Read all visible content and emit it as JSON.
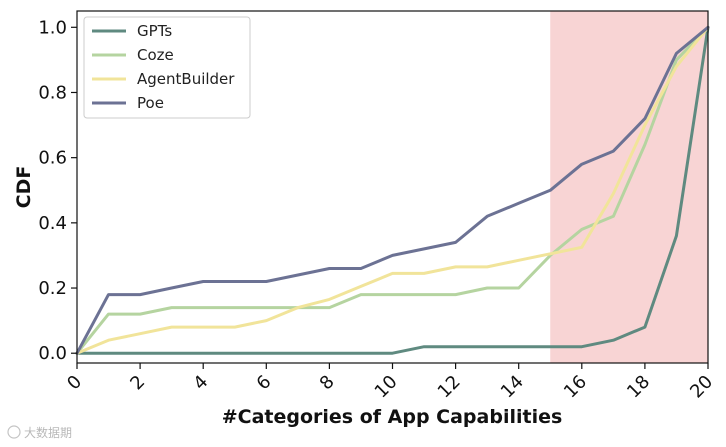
{
  "chart_data": {
    "type": "line",
    "title": "",
    "xlabel": "#Categories of App Capabilities",
    "ylabel": "CDF",
    "xlim": [
      0,
      20
    ],
    "ylim": [
      -0.03,
      1.05
    ],
    "xticks": [
      0,
      2,
      4,
      6,
      8,
      10,
      12,
      14,
      16,
      18,
      20
    ],
    "yticks": [
      0.0,
      0.2,
      0.4,
      0.6,
      0.8,
      1.0
    ],
    "ytick_labels": [
      "0.0",
      "0.2",
      "0.4",
      "0.6",
      "0.8",
      "1.0"
    ],
    "grid": false,
    "legend_position": "top-left",
    "highlight_region": {
      "x_start": 15,
      "x_end": 20,
      "color": "#f5c6c6"
    },
    "x": [
      0,
      1,
      2,
      3,
      4,
      5,
      6,
      7,
      8,
      9,
      10,
      11,
      12,
      13,
      14,
      15,
      16,
      17,
      18,
      19,
      20
    ],
    "series": [
      {
        "name": "GPTs",
        "color": "#5f8a80",
        "values": [
          0,
          0,
          0,
          0,
          0,
          0,
          0,
          0,
          0,
          0,
          0,
          0.02,
          0.02,
          0.02,
          0.02,
          0.02,
          0.02,
          0.04,
          0.08,
          0.36,
          1.0
        ]
      },
      {
        "name": "Coze",
        "color": "#b5d4a0",
        "values": [
          0,
          0.12,
          0.12,
          0.14,
          0.14,
          0.14,
          0.14,
          0.14,
          0.14,
          0.18,
          0.18,
          0.18,
          0.18,
          0.2,
          0.2,
          0.3,
          0.38,
          0.42,
          0.64,
          0.9,
          1.0
        ]
      },
      {
        "name": "AgentBuilder",
        "color": "#f1e49a",
        "values": [
          0,
          0.04,
          0.06,
          0.08,
          0.08,
          0.08,
          0.1,
          0.14,
          0.165,
          0.205,
          0.245,
          0.245,
          0.265,
          0.265,
          0.285,
          0.305,
          0.325,
          0.49,
          0.7,
          0.88,
          1.0
        ]
      },
      {
        "name": "Poe",
        "color": "#6c7294",
        "values": [
          0,
          0.18,
          0.18,
          0.2,
          0.22,
          0.22,
          0.22,
          0.24,
          0.26,
          0.26,
          0.3,
          0.32,
          0.34,
          0.42,
          0.46,
          0.5,
          0.58,
          0.62,
          0.72,
          0.92,
          1.0
        ]
      }
    ]
  },
  "watermark_text": "大数据期"
}
